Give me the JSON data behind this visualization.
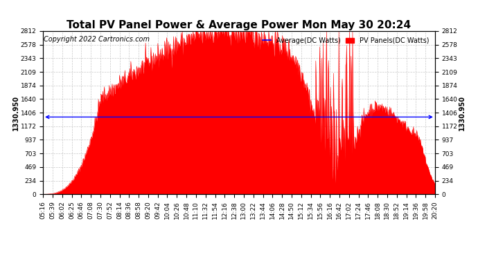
{
  "title": "Total PV Panel Power & Average Power Mon May 30 20:24",
  "copyright": "Copyright 2022 Cartronics.com",
  "legend_avg": "Average(DC Watts)",
  "legend_pv": "PV Panels(DC Watts)",
  "avg_value": 1330.95,
  "avg_label": "1330.950",
  "y_ticks": [
    0.0,
    234.3,
    468.6,
    702.9,
    937.3,
    1171.6,
    1405.9,
    1640.2,
    1874.5,
    2108.8,
    2343.2,
    2577.5,
    2811.8
  ],
  "y_max": 2811.8,
  "y_min": 0.0,
  "x_tick_labels": [
    "05:16",
    "05:39",
    "06:02",
    "06:25",
    "06:46",
    "07:08",
    "07:30",
    "07:52",
    "08:14",
    "08:36",
    "08:58",
    "09:20",
    "09:42",
    "10:04",
    "10:26",
    "10:48",
    "11:10",
    "11:32",
    "11:54",
    "12:16",
    "12:38",
    "13:00",
    "13:22",
    "13:44",
    "14:06",
    "14:28",
    "14:50",
    "15:12",
    "15:34",
    "15:56",
    "16:16",
    "16:42",
    "17:02",
    "17:24",
    "17:46",
    "18:08",
    "18:30",
    "18:52",
    "19:14",
    "19:36",
    "19:58",
    "20:20"
  ],
  "bg_color": "#ffffff",
  "fill_color": "#ff0000",
  "line_color": "#0000ff",
  "grid_color": "#c8c8c8",
  "title_fontsize": 11,
  "copyright_fontsize": 7,
  "tick_fontsize": 6.5,
  "label_fontsize": 7,
  "avg_label_fontsize": 7
}
